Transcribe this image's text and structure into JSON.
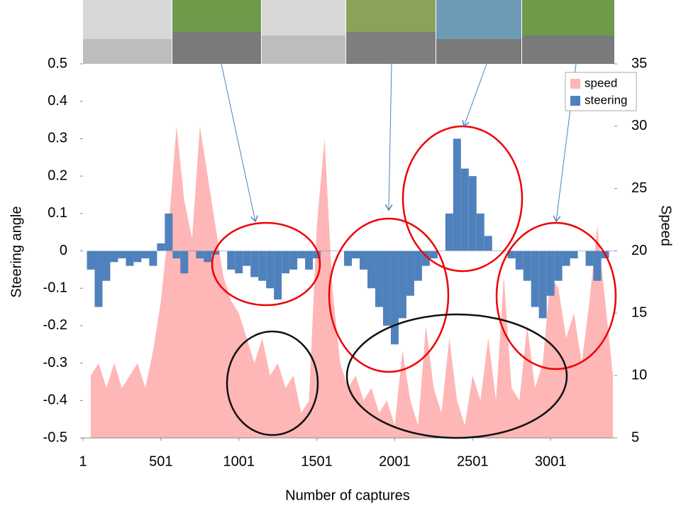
{
  "chart_data": {
    "type": "bar-area",
    "x_label": "Number of captures",
    "y_label": "Steering angle",
    "y2_label": "Speed",
    "x": [
      51,
      101,
      151,
      201,
      251,
      301,
      351,
      401,
      451,
      501,
      551,
      601,
      651,
      701,
      751,
      801,
      851,
      901,
      951,
      1001,
      1051,
      1101,
      1151,
      1201,
      1251,
      1301,
      1351,
      1401,
      1451,
      1501,
      1551,
      1601,
      1651,
      1701,
      1751,
      1801,
      1851,
      1901,
      1951,
      2001,
      2051,
      2101,
      2151,
      2201,
      2251,
      2301,
      2351,
      2401,
      2451,
      2501,
      2551,
      2601,
      2651,
      2701,
      2751,
      2801,
      2851,
      2901,
      2951,
      3001,
      3051,
      3101,
      3151,
      3201,
      3251,
      3301,
      3351,
      3401
    ],
    "series": [
      {
        "name": "speed",
        "color": "#ffb6b6",
        "axis": "y2",
        "values": [
          10,
          11,
          9,
          11,
          9,
          10,
          11,
          9,
          12,
          16,
          22,
          30,
          24,
          21,
          30,
          26,
          22,
          18,
          16,
          15,
          13,
          11,
          13,
          10,
          11,
          9,
          10,
          7,
          8,
          22,
          29,
          17,
          11,
          9,
          10,
          8,
          9,
          7,
          8,
          6,
          12,
          8,
          6,
          14,
          9,
          7,
          13,
          8,
          6,
          10,
          8,
          13,
          8,
          18,
          9,
          8,
          14,
          9,
          11,
          18,
          17,
          13,
          15,
          11,
          16,
          22,
          16,
          10
        ]
      },
      {
        "name": "steering",
        "color": "#4f81bd",
        "axis": "y",
        "values": [
          -0.05,
          -0.15,
          -0.08,
          -0.03,
          -0.02,
          -0.04,
          -0.03,
          -0.02,
          -0.04,
          0.02,
          0.1,
          -0.02,
          -0.06,
          0,
          -0.02,
          -0.03,
          -0.01,
          0,
          -0.05,
          -0.06,
          -0.04,
          -0.07,
          -0.08,
          -0.1,
          -0.13,
          -0.06,
          -0.05,
          -0.02,
          -0.05,
          -0.02,
          0,
          0,
          0,
          -0.04,
          -0.02,
          -0.05,
          -0.1,
          -0.15,
          -0.2,
          -0.25,
          -0.18,
          -0.12,
          -0.08,
          -0.04,
          -0.02,
          0,
          0.1,
          0.3,
          0.22,
          0.2,
          0.1,
          0.04,
          0,
          0,
          -0.02,
          -0.05,
          -0.08,
          -0.15,
          -0.18,
          -0.12,
          -0.08,
          -0.04,
          -0.02,
          0,
          -0.04,
          -0.08,
          -0.02,
          0
        ]
      }
    ],
    "xlim": [
      1,
      3410
    ],
    "xticks": [
      1,
      501,
      1001,
      1501,
      2001,
      2501,
      3001
    ],
    "ylim": [
      -0.5,
      0.5
    ],
    "yticks": [
      -0.5,
      -0.4,
      -0.3,
      -0.2,
      -0.1,
      0,
      0.1,
      0.2,
      0.3,
      0.4,
      0.5
    ],
    "y2lim": [
      5,
      35
    ],
    "y2ticks": [
      5,
      10,
      15,
      20,
      25,
      30,
      35
    ],
    "legend": "upper right"
  }
}
